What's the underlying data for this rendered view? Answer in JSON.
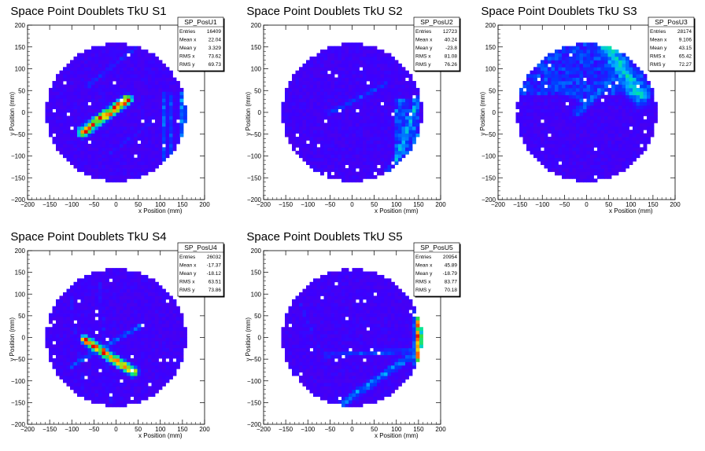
{
  "chart_data": [
    {
      "type": "heatmap",
      "title": "Space Point Doublets TkU S1",
      "xlabel": "x Position (mm)",
      "ylabel": "y Position (mm)",
      "xlim": [
        -200,
        200
      ],
      "ylim": [
        -200,
        200
      ],
      "xticks": [
        "−200",
        "−150",
        "−100",
        "−50",
        "0",
        "50",
        "100",
        "150",
        "200"
      ],
      "yticks": [
        "−200",
        "−150",
        "−100",
        "−50",
        "0",
        "50",
        "100",
        "150",
        "200"
      ],
      "stats": {
        "name": "SP_PosU1",
        "rows": [
          {
            "label": "Entries",
            "value": "16409"
          },
          {
            "label": "Mean x",
            "value": "22.04"
          },
          {
            "label": "Mean y",
            "value": "3.329"
          },
          {
            "label": "RMS x",
            "value": "73.62"
          },
          {
            "label": "RMS y",
            "value": "69.73"
          }
        ]
      },
      "features": [
        {
          "kind": "band",
          "from": [
            -75,
            -45
          ],
          "to": [
            25,
            30
          ],
          "peak": 0.95,
          "width": 9
        },
        {
          "kind": "band",
          "from": [
            -65,
            60
          ],
          "to": [
            45,
            150
          ],
          "peak": 0.25,
          "width": 5
        },
        {
          "kind": "band",
          "from": [
            -15,
            -95
          ],
          "to": [
            75,
            -25
          ],
          "peak": 0.2,
          "width": 5
        },
        {
          "kind": "band",
          "from": [
            110,
            -140
          ],
          "to": [
            110,
            45
          ],
          "peak": 0.35,
          "width": 5
        },
        {
          "kind": "band",
          "from": [
            150,
            -120
          ],
          "to": [
            150,
            40
          ],
          "peak": 0.4,
          "width": 7
        },
        {
          "kind": "band",
          "from": [
            125,
            -90
          ],
          "to": [
            125,
            40
          ],
          "peak": 0.3,
          "width": 5
        }
      ]
    },
    {
      "type": "heatmap",
      "title": "Space Point Doublets TkU S2",
      "xlabel": "x Position (mm)",
      "ylabel": "y Position (mm)",
      "xlim": [
        -200,
        200
      ],
      "ylim": [
        -200,
        200
      ],
      "xticks": [
        "−200",
        "−150",
        "−100",
        "−50",
        "0",
        "50",
        "100",
        "150",
        "200"
      ],
      "yticks": [
        "−200",
        "−150",
        "−100",
        "−50",
        "0",
        "50",
        "100",
        "150",
        "200"
      ],
      "stats": {
        "name": "SP_PosU2",
        "rows": [
          {
            "label": "Entries",
            "value": "12723"
          },
          {
            "label": "Mean x",
            "value": "40.24"
          },
          {
            "label": "Mean y",
            "value": "-23.8"
          },
          {
            "label": "RMS x",
            "value": "81.08"
          },
          {
            "label": "RMS y",
            "value": "76.26"
          }
        ]
      },
      "features": [
        {
          "kind": "band",
          "from": [
            -50,
            0
          ],
          "to": [
            75,
            65
          ],
          "peak": 0.3,
          "width": 5
        },
        {
          "kind": "region",
          "xmin": 100,
          "xmax": 150,
          "ymin": -110,
          "ymax": 30,
          "peak": 0.35
        },
        {
          "kind": "band",
          "from": [
            100,
            -110
          ],
          "to": [
            150,
            30
          ],
          "peak": 0.45,
          "width": 7
        },
        {
          "kind": "band",
          "from": [
            70,
            -150
          ],
          "to": [
            140,
            -40
          ],
          "peak": 0.3,
          "width": 5
        }
      ]
    },
    {
      "type": "heatmap",
      "title": "Space Point Doublets TkU S3",
      "xlabel": "x Position (mm)",
      "ylabel": "y Position (mm)",
      "xlim": [
        -200,
        200
      ],
      "ylim": [
        -200,
        200
      ],
      "xticks": [
        "−200",
        "−150",
        "−100",
        "−50",
        "0",
        "50",
        "100",
        "150",
        "200"
      ],
      "yticks": [
        "−200",
        "−150",
        "−100",
        "−50",
        "0",
        "50",
        "100",
        "150",
        "200"
      ],
      "stats": {
        "name": "SP_PosU3",
        "rows": [
          {
            "label": "Entries",
            "value": "28174"
          },
          {
            "label": "Mean x",
            "value": "9.106"
          },
          {
            "label": "Mean y",
            "value": "43.15"
          },
          {
            "label": "RMS x",
            "value": "65.42"
          },
          {
            "label": "RMS y",
            "value": "72.27"
          }
        ]
      },
      "features": [
        {
          "kind": "region",
          "xmin": -150,
          "xmax": 160,
          "ymin": 40,
          "ymax": 160,
          "peak": 0.3
        },
        {
          "kind": "band",
          "from": [
            40,
            160
          ],
          "to": [
            120,
            40
          ],
          "peak": 0.5,
          "width": 20
        },
        {
          "kind": "band",
          "from": [
            -20,
            0
          ],
          "to": [
            60,
            80
          ],
          "peak": 0.35,
          "width": 10
        },
        {
          "kind": "band",
          "from": [
            -100,
            100
          ],
          "to": [
            0,
            20
          ],
          "peak": 0.3,
          "width": 10
        }
      ]
    },
    {
      "type": "heatmap",
      "title": "Space Point Doublets TkU S4",
      "xlabel": "x Position (mm)",
      "ylabel": "y Position (mm)",
      "xlim": [
        -200,
        200
      ],
      "ylim": [
        -200,
        200
      ],
      "xticks": [
        "−200",
        "−150",
        "−100",
        "−50",
        "0",
        "50",
        "100",
        "150",
        "200"
      ],
      "yticks": [
        "−200",
        "−150",
        "−100",
        "−50",
        "0",
        "50",
        "100",
        "150",
        "200"
      ],
      "stats": {
        "name": "SP_PosU4",
        "rows": [
          {
            "label": "Entries",
            "value": "26032"
          },
          {
            "label": "Mean x",
            "value": "-17.37"
          },
          {
            "label": "Mean y",
            "value": "-18.12"
          },
          {
            "label": "RMS x",
            "value": "63.51"
          },
          {
            "label": "RMS y",
            "value": "73.86"
          }
        ]
      },
      "features": [
        {
          "kind": "band",
          "from": [
            -70,
            -5
          ],
          "to": [
            40,
            -80
          ],
          "peak": 0.95,
          "width": 8
        },
        {
          "kind": "band",
          "from": [
            -100,
            -65
          ],
          "to": [
            60,
            30
          ],
          "peak": 0.35,
          "width": 5
        },
        {
          "kind": "band",
          "from": [
            -110,
            150
          ],
          "to": [
            -70,
            -150
          ],
          "peak": 0.2,
          "width": 4
        },
        {
          "kind": "band",
          "from": [
            -40,
            150
          ],
          "to": [
            -10,
            -150
          ],
          "peak": 0.2,
          "width": 4
        }
      ]
    },
    {
      "type": "heatmap",
      "title": "Space Point Doublets TkU S5",
      "xlabel": "x Position (mm)",
      "ylabel": "y Position (mm)",
      "xlim": [
        -200,
        200
      ],
      "ylim": [
        -200,
        200
      ],
      "xticks": [
        "−200",
        "−150",
        "−100",
        "−50",
        "0",
        "50",
        "100",
        "150",
        "200"
      ],
      "yticks": [
        "−200",
        "−150",
        "−100",
        "−50",
        "0",
        "50",
        "100",
        "150",
        "200"
      ],
      "stats": {
        "name": "SP_PosU5",
        "rows": [
          {
            "label": "Entries",
            "value": "20954"
          },
          {
            "label": "Mean x",
            "value": "45.89"
          },
          {
            "label": "Mean y",
            "value": "-18.79"
          },
          {
            "label": "RMS x",
            "value": "83.77"
          },
          {
            "label": "RMS y",
            "value": "70.18"
          }
        ]
      },
      "features": [
        {
          "kind": "band",
          "from": [
            150,
            -60
          ],
          "to": [
            150,
            60
          ],
          "peak": 0.9,
          "width": 7
        },
        {
          "kind": "band",
          "from": [
            -20,
            -150
          ],
          "to": [
            150,
            -30
          ],
          "peak": 0.4,
          "width": 8
        },
        {
          "kind": "band",
          "from": [
            -60,
            -40
          ],
          "to": [
            150,
            -30
          ],
          "peak": 0.3,
          "width": 6
        },
        {
          "kind": "band",
          "from": [
            -120,
            80
          ],
          "to": [
            -60,
            -50
          ],
          "peak": 0.2,
          "width": 5
        },
        {
          "kind": "band",
          "from": [
            -50,
            140
          ],
          "to": [
            40,
            50
          ],
          "peak": 0.15,
          "width": 5
        }
      ]
    }
  ]
}
